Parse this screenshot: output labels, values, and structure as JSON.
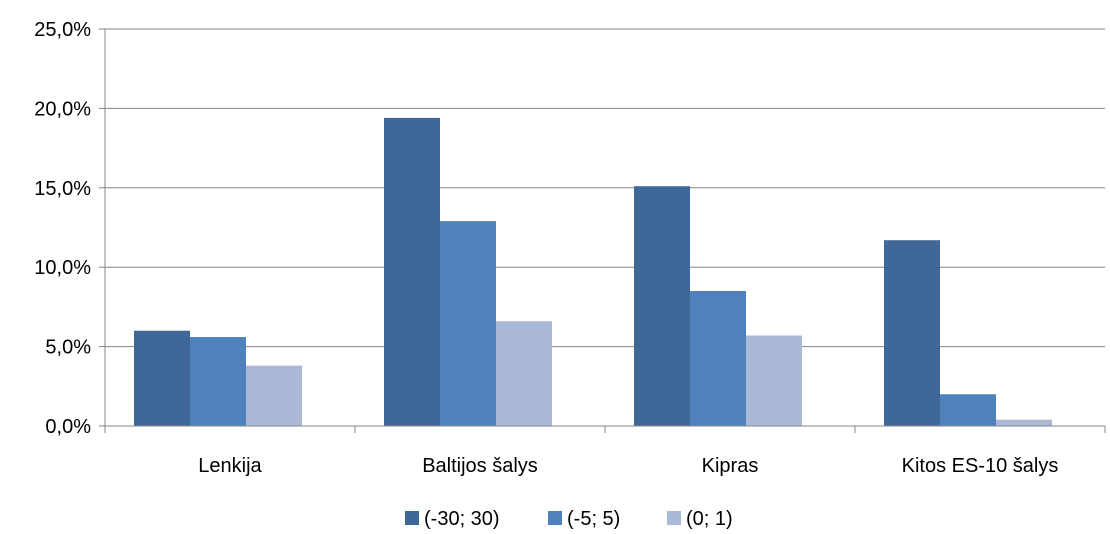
{
  "chart_data": {
    "type": "bar",
    "categories": [
      "Lenkija",
      "Baltijos šalys",
      "Kipras",
      "Kitos ES-10 šalys"
    ],
    "series": [
      {
        "name": "(-30; 30)",
        "values": [
          6.0,
          19.4,
          15.1,
          11.7
        ],
        "color": "#3F6797"
      },
      {
        "name": "(-5; 5)",
        "values": [
          5.6,
          12.9,
          8.5,
          2.0
        ],
        "color": "#4F81BD"
      },
      {
        "name": "(0; 1)",
        "values": [
          3.8,
          6.6,
          5.7,
          0.4
        ],
        "color": "#AAB9D8"
      }
    ],
    "y_tick_labels": [
      "0,0%",
      "5,0%",
      "10,0%",
      "15,0%",
      "20,0%",
      "25,0%"
    ],
    "ylim": [
      0,
      25
    ],
    "y_unit": "%",
    "grid": true,
    "legend_position": "bottom",
    "title": "",
    "xlabel": "",
    "ylabel": ""
  }
}
